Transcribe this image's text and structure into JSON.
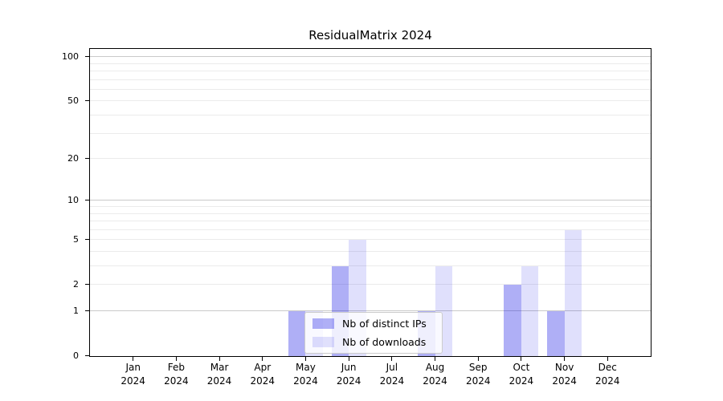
{
  "chart_data": {
    "type": "bar",
    "title": "ResidualMatrix 2024",
    "categories": [
      "Jan",
      "Feb",
      "Mar",
      "Apr",
      "May",
      "Jun",
      "Jul",
      "Aug",
      "Sep",
      "Oct",
      "Nov",
      "Dec"
    ],
    "category_year": "2024",
    "series": [
      {
        "name": "Nb of distinct IPs",
        "color": "rgba(20,20,230,0.34)",
        "values": [
          0,
          0,
          0,
          0,
          1,
          3,
          0,
          1,
          0,
          2,
          1,
          0
        ]
      },
      {
        "name": "Nb of downloads",
        "color": "rgba(20,20,230,0.135)",
        "values": [
          0,
          0,
          0,
          0,
          1,
          5,
          0,
          3,
          0,
          3,
          6,
          0
        ]
      }
    ],
    "xlabel": "",
    "ylabel": "",
    "yscale": "log1p",
    "ylim": [
      0,
      113
    ],
    "yticks": [
      0,
      1,
      2,
      5,
      10,
      20,
      50,
      100
    ],
    "minor_yticks": [
      2,
      3,
      4,
      5,
      6,
      7,
      8,
      9,
      20,
      30,
      40,
      50,
      60,
      70,
      80,
      90
    ],
    "major_gridlines": [
      1,
      10,
      100
    ],
    "grid": true,
    "legend_position": "lower center"
  }
}
